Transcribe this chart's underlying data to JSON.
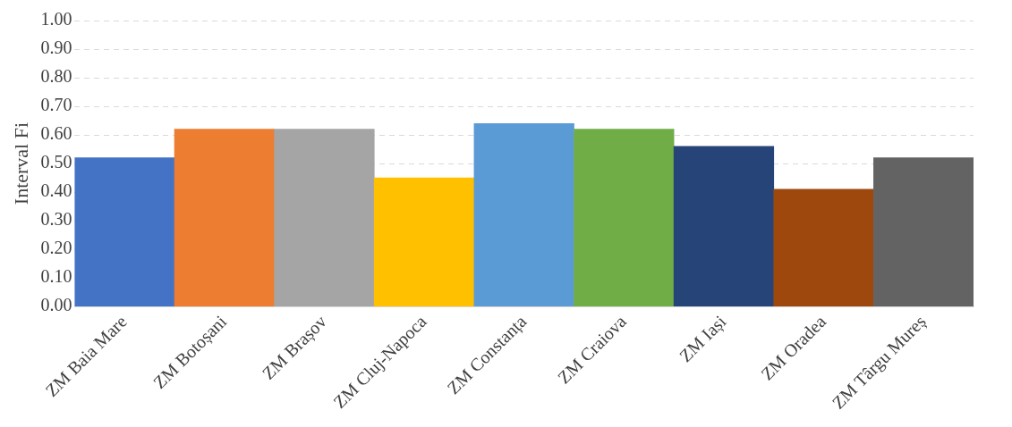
{
  "chart_data": {
    "type": "bar",
    "ylabel": "Interval Fi",
    "categories": [
      "ZM Baia Mare",
      "ZM Botoșani",
      "ZM Brașov",
      "ZM Cluj-Napoca",
      "ZM Constanța",
      "ZM Craiova",
      "ZM Iași",
      "ZM Oradea",
      "ZM Târgu Mureș"
    ],
    "values": [
      0.52,
      0.62,
      0.62,
      0.45,
      0.64,
      0.62,
      0.56,
      0.41,
      0.52
    ],
    "colors": [
      "#4472c4",
      "#ed7d31",
      "#a5a5a5",
      "#ffc000",
      "#5b9bd5",
      "#70ad47",
      "#264478",
      "#9e480e",
      "#636363"
    ],
    "ylim": [
      0,
      1
    ],
    "yticks": [
      {
        "value": 0,
        "label": "0.00"
      },
      {
        "value": 0.1,
        "label": "0.10"
      },
      {
        "value": 0.2,
        "label": "0.20"
      },
      {
        "value": 0.3,
        "label": "0.30"
      },
      {
        "value": 0.4,
        "label": "0.40"
      },
      {
        "value": 0.5,
        "label": "0.50"
      },
      {
        "value": 0.6,
        "label": "0.60"
      },
      {
        "value": 0.7,
        "label": "0.70"
      },
      {
        "value": 0.8,
        "label": "0.80"
      },
      {
        "value": 0.9,
        "label": "0.90"
      },
      {
        "value": 1,
        "label": "1.00"
      }
    ],
    "grid": "y",
    "line_style": "dashed"
  }
}
